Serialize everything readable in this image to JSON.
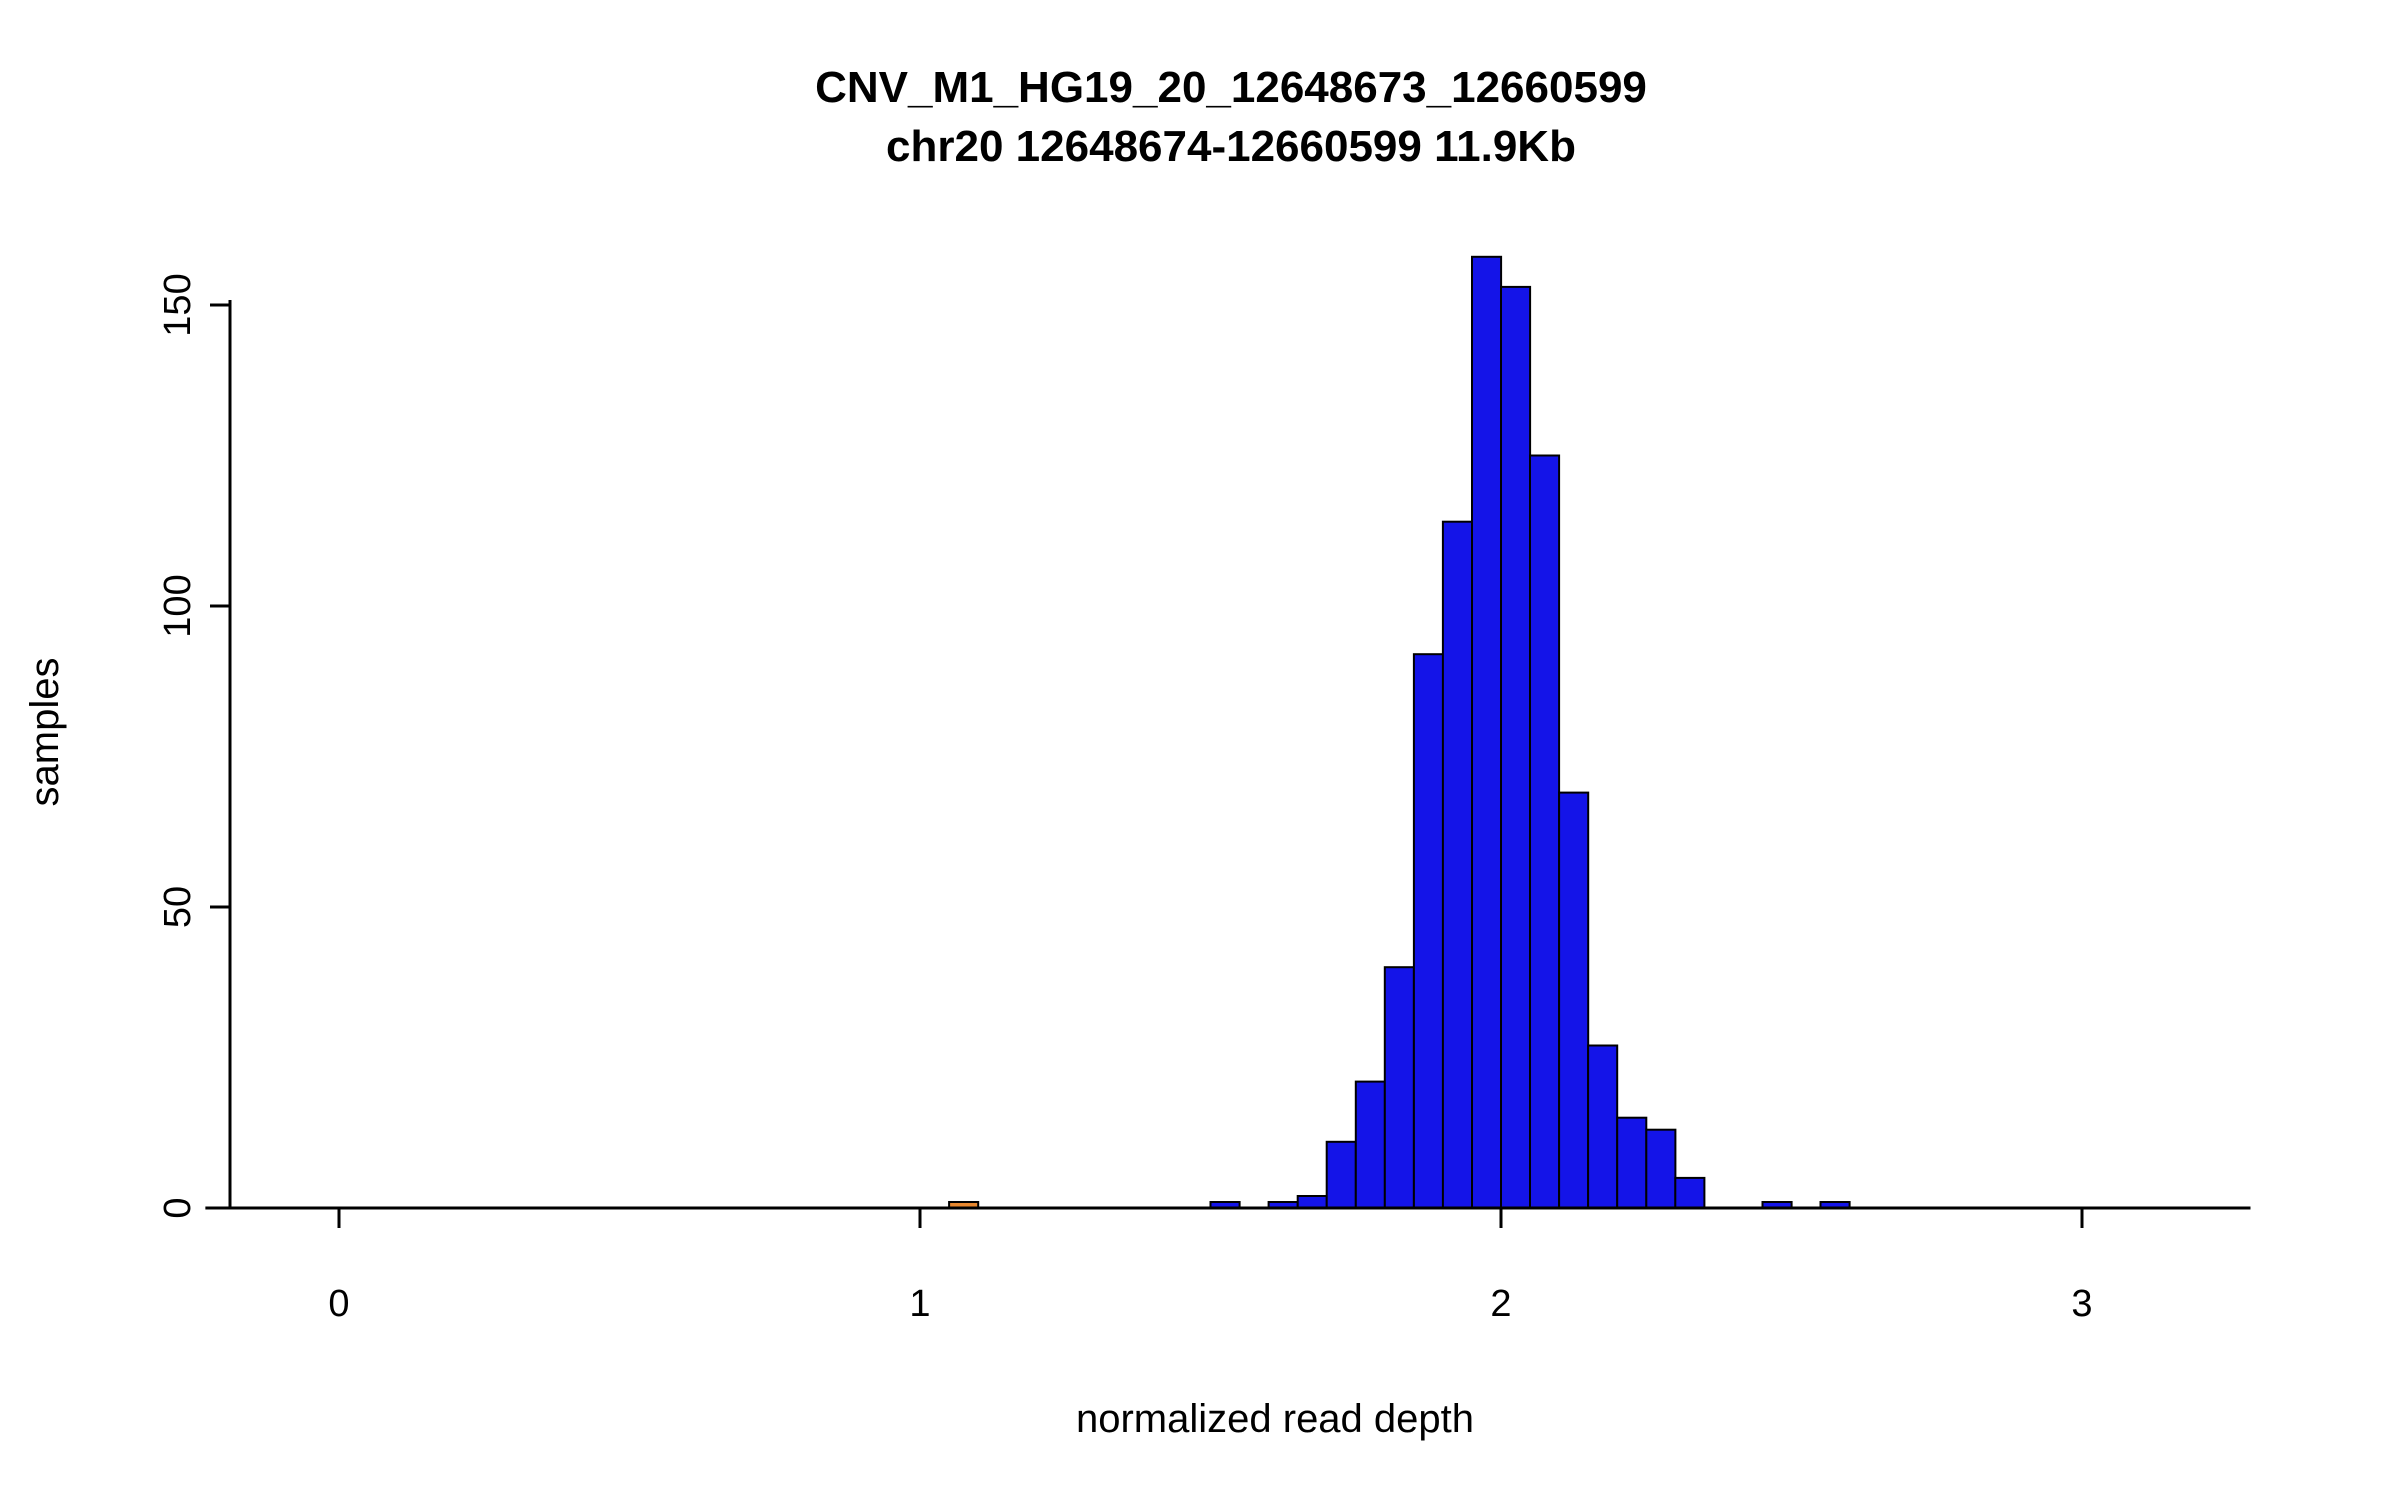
{
  "chart_data": {
    "type": "bar",
    "title": "CNV_M1_HG19_20_12648673_12660599",
    "subtitle": "chr20 12648674-12660599 11.9Kb",
    "xlabel": "normalized read depth",
    "ylabel": "samples",
    "x_ticks": [
      0,
      1,
      2,
      3
    ],
    "y_ticks": [
      0,
      50,
      100,
      150
    ],
    "xlim": [
      -0.23,
      3.29
    ],
    "ylim": [
      0,
      158
    ],
    "bin_width": 0.05,
    "bar_color": "#1414e8",
    "bar_border_color": "#000000",
    "highlight_color": "#e8882f",
    "grid": "off",
    "legend": "none",
    "bars": [
      {
        "x0": 1.05,
        "count": 1,
        "highlight": true
      },
      {
        "x0": 1.5,
        "count": 1
      },
      {
        "x0": 1.6,
        "count": 1
      },
      {
        "x0": 1.65,
        "count": 2
      },
      {
        "x0": 1.7,
        "count": 11
      },
      {
        "x0": 1.75,
        "count": 21
      },
      {
        "x0": 1.8,
        "count": 40
      },
      {
        "x0": 1.85,
        "count": 92
      },
      {
        "x0": 1.9,
        "count": 114
      },
      {
        "x0": 1.95,
        "count": 158
      },
      {
        "x0": 2.0,
        "count": 153
      },
      {
        "x0": 2.05,
        "count": 125
      },
      {
        "x0": 2.1,
        "count": 69
      },
      {
        "x0": 2.15,
        "count": 27
      },
      {
        "x0": 2.2,
        "count": 15
      },
      {
        "x0": 2.25,
        "count": 13
      },
      {
        "x0": 2.3,
        "count": 5
      },
      {
        "x0": 2.45,
        "count": 1
      },
      {
        "x0": 2.55,
        "count": 1
      }
    ]
  }
}
